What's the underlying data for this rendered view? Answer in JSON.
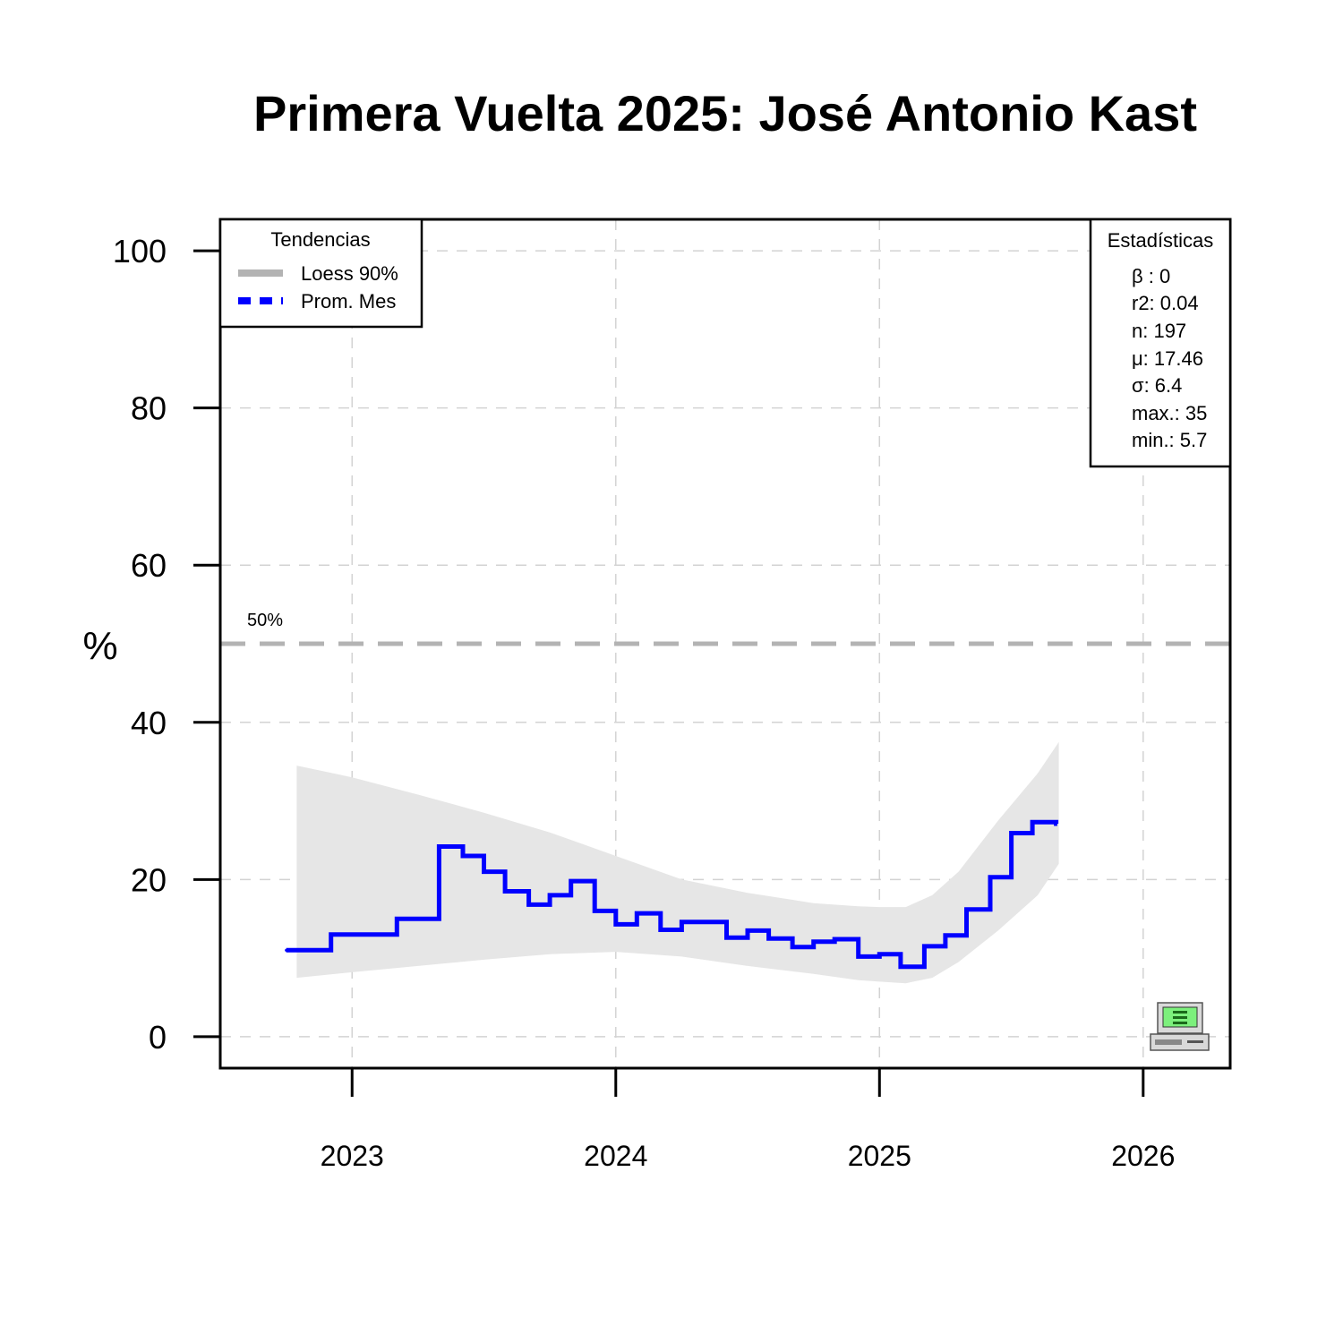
{
  "chart_data": {
    "type": "line",
    "title": "Primera Vuelta 2025: José Antonio Kast",
    "xlabel": "",
    "ylabel": "%",
    "xlim": [
      2022.5,
      2026.33
    ],
    "ylim": [
      -4,
      104
    ],
    "x_ticks": [
      2023,
      2024,
      2025,
      2026
    ],
    "y_ticks": [
      0,
      20,
      40,
      60,
      80,
      100
    ],
    "grid": true,
    "reference_line": {
      "y": 50,
      "label": "50%",
      "color": "#b3b3b3"
    },
    "legend": {
      "title": "Tendencias",
      "placement": "top-left",
      "items": [
        {
          "label": "Loess 90%",
          "color": "#b3b3b3",
          "style": "solid"
        },
        {
          "label": "Prom. Mes",
          "color": "#0000ff",
          "style": "dashed"
        }
      ]
    },
    "stats_box": {
      "title": "Estadísticas",
      "placement": "top-right",
      "lines": [
        "β : 0",
        "r2: 0.04",
        "n: 197",
        "μ: 17.46",
        "σ: 6.4",
        "max.: 35",
        "min.: 5.7"
      ]
    },
    "band": {
      "name": "Loess 90%",
      "color": "#e6e6e6",
      "x": [
        2022.79,
        2023.0,
        2023.25,
        2023.5,
        2023.75,
        2024.0,
        2024.25,
        2024.5,
        2024.75,
        2024.92,
        2025.0,
        2025.1,
        2025.2,
        2025.3,
        2025.45,
        2025.6,
        2025.68
      ],
      "upper": [
        34.5,
        33.0,
        30.8,
        28.5,
        26.0,
        23.0,
        20.0,
        18.3,
        17.0,
        16.6,
        16.5,
        16.5,
        18.0,
        21.0,
        27.5,
        33.5,
        37.5
      ],
      "lower": [
        7.5,
        8.2,
        9.0,
        9.8,
        10.5,
        10.8,
        10.2,
        9.0,
        8.0,
        7.2,
        7.0,
        6.8,
        7.5,
        9.5,
        13.5,
        18.0,
        22.0
      ]
    },
    "series": [
      {
        "name": "Prom. Mes",
        "color": "#0000ff",
        "step": true,
        "x": [
          2022.75,
          2022.92,
          2023.17,
          2023.33,
          2023.42,
          2023.5,
          2023.58,
          2023.67,
          2023.75,
          2023.83,
          2023.92,
          2024.0,
          2024.08,
          2024.17,
          2024.25,
          2024.42,
          2024.5,
          2024.58,
          2024.67,
          2024.75,
          2024.83,
          2024.92,
          2025.0,
          2025.08,
          2025.17,
          2025.25,
          2025.33,
          2025.42,
          2025.5,
          2025.58,
          2025.67
        ],
        "values": [
          11.0,
          13.0,
          15.0,
          24.2,
          23.0,
          21.0,
          18.5,
          16.8,
          18.0,
          19.8,
          16.0,
          14.3,
          15.7,
          13.6,
          14.6,
          12.6,
          13.5,
          12.5,
          11.4,
          12.1,
          12.4,
          10.2,
          10.5,
          8.9,
          11.5,
          12.9,
          16.2,
          20.3,
          25.9,
          27.3,
          27.1
        ]
      }
    ]
  }
}
